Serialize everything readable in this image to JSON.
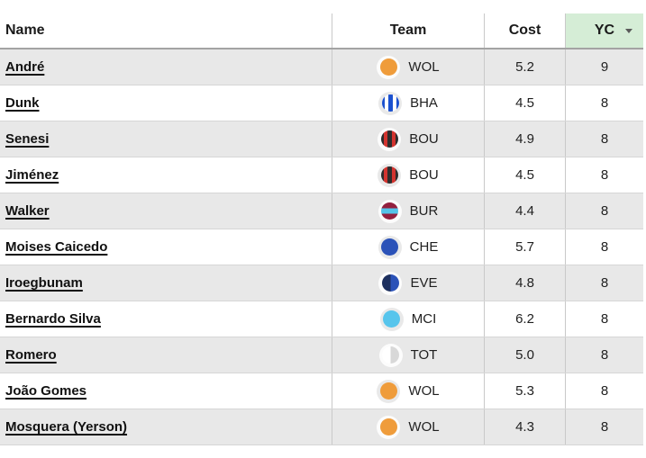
{
  "table": {
    "columns": [
      {
        "key": "name",
        "label": "Name"
      },
      {
        "key": "team",
        "label": "Team"
      },
      {
        "key": "cost",
        "label": "Cost"
      },
      {
        "key": "yc",
        "label": "YC",
        "sort": "desc",
        "header_bg": "#d5edd6"
      }
    ],
    "rows": [
      {
        "name": "André",
        "team": "WOL",
        "cost": "5.2",
        "yc": "9"
      },
      {
        "name": "Dunk",
        "team": "BHA",
        "cost": "4.5",
        "yc": "8"
      },
      {
        "name": "Senesi",
        "team": "BOU",
        "cost": "4.9",
        "yc": "8"
      },
      {
        "name": "Jiménez",
        "team": "BOU",
        "cost": "4.5",
        "yc": "8"
      },
      {
        "name": "Walker",
        "team": "BUR",
        "cost": "4.4",
        "yc": "8"
      },
      {
        "name": "Moises Caicedo",
        "team": "CHE",
        "cost": "5.7",
        "yc": "8"
      },
      {
        "name": "Iroegbunam",
        "team": "EVE",
        "cost": "4.8",
        "yc": "8"
      },
      {
        "name": "Bernardo Silva",
        "team": "MCI",
        "cost": "6.2",
        "yc": "8"
      },
      {
        "name": "Romero",
        "team": "TOT",
        "cost": "5.0",
        "yc": "8"
      },
      {
        "name": "João Gomes",
        "team": "WOL",
        "cost": "5.3",
        "yc": "8"
      },
      {
        "name": "Mosquera (Yerson)",
        "team": "WOL",
        "cost": "4.3",
        "yc": "8"
      }
    ]
  },
  "teams": {
    "WOL": {
      "badge_icon": "wolves-kit-icon",
      "type": "solid",
      "colors": [
        "#ef9c3b"
      ]
    },
    "BHA": {
      "badge_icon": "brighton-kit-icon",
      "type": "stripes-v",
      "colors": [
        "#1a50cf",
        "#ffffff"
      ]
    },
    "BOU": {
      "badge_icon": "bournemouth-kit-icon",
      "type": "stripes-v",
      "colors": [
        "#2d2d2d",
        "#d2342f"
      ]
    },
    "BUR": {
      "badge_icon": "burnley-kit-icon",
      "type": "band-h",
      "colors": [
        "#93203f",
        "#54c3e9"
      ]
    },
    "CHE": {
      "badge_icon": "chelsea-kit-icon",
      "type": "solid",
      "colors": [
        "#2b52b8"
      ]
    },
    "EVE": {
      "badge_icon": "everton-kit-icon",
      "type": "split-v",
      "colors": [
        "#1c2f5e",
        "#2b52b8"
      ]
    },
    "MCI": {
      "badge_icon": "man-city-kit-icon",
      "type": "solid",
      "colors": [
        "#57c5ec"
      ]
    },
    "TOT": {
      "badge_icon": "spurs-kit-icon",
      "type": "split-v",
      "colors": [
        "#ffffff",
        "#d8d8d8"
      ]
    }
  },
  "colors": {
    "row_alt_bg": "#e8e8e8",
    "row_bg": "#ffffff",
    "grid_line": "#c9c9c9",
    "header_border": "#a3a3a3",
    "sorted_header_bg": "#d5edd6",
    "sort_arrow": "#5a5a5a"
  },
  "icons": {
    "sort_desc": "sort-desc-arrow-icon"
  }
}
